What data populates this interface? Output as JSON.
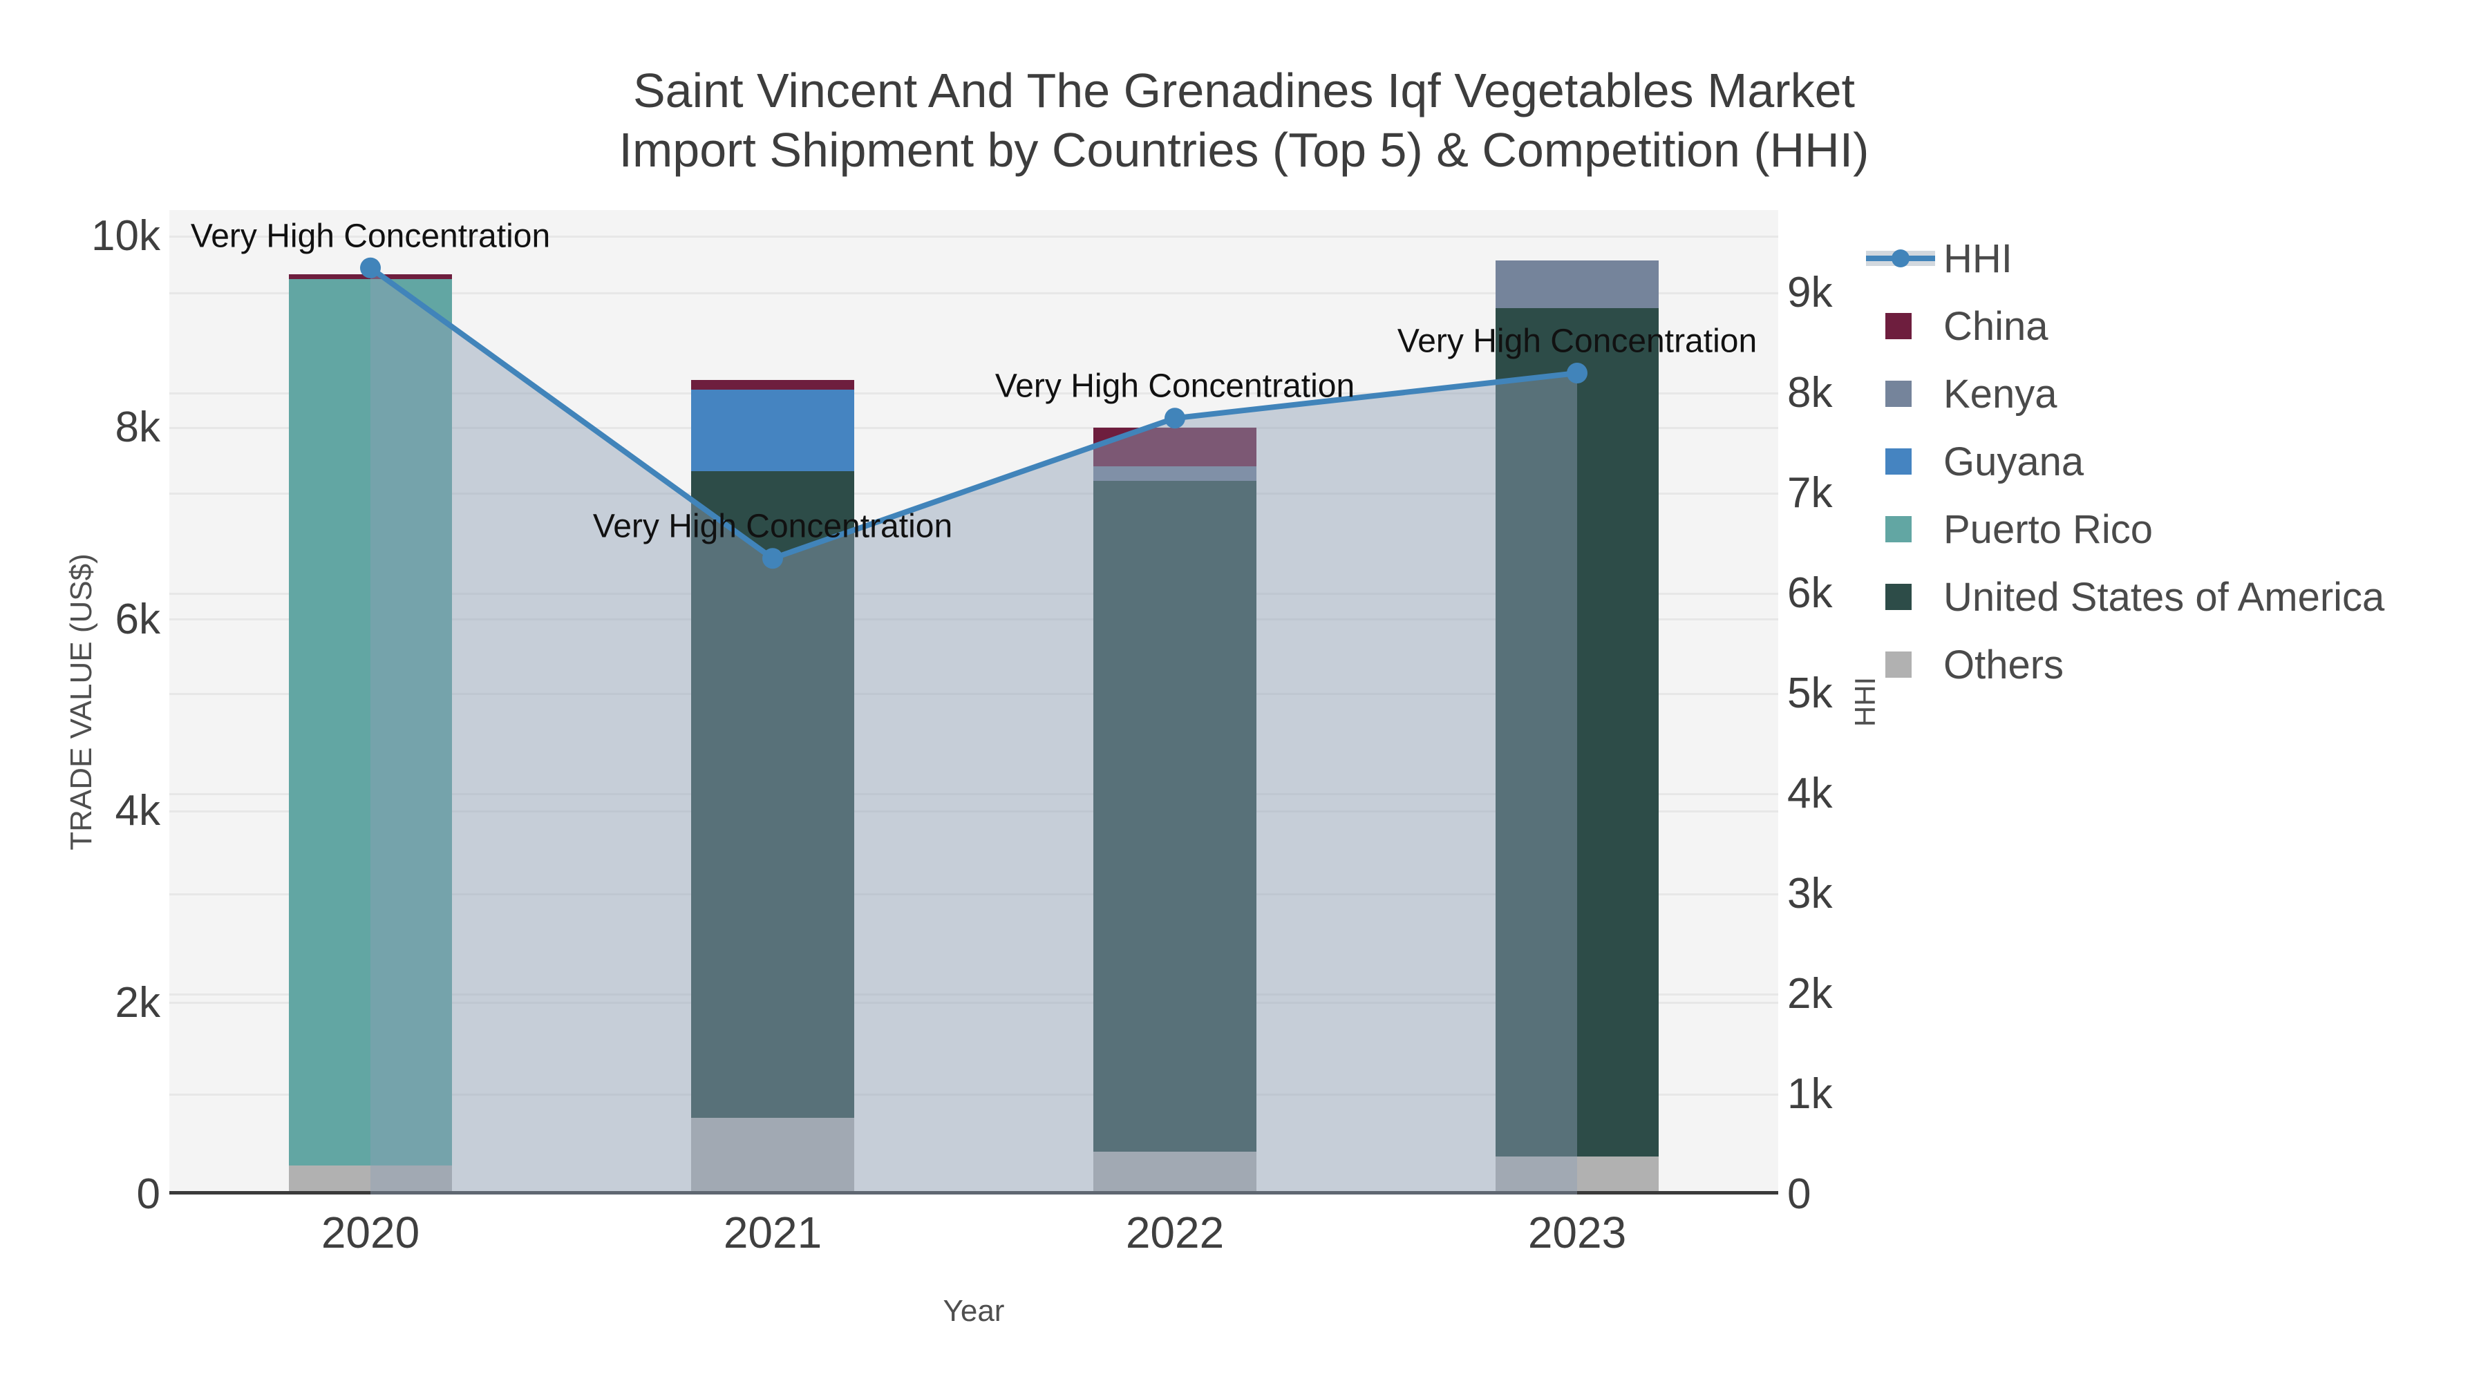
{
  "title": {
    "line1": "Saint Vincent And The Grenadines Iqf Vegetables Market",
    "line2": "Import Shipment by Countries (Top 5) & Competition (HHI)"
  },
  "axes": {
    "x": {
      "title": "Year"
    },
    "y_left": {
      "title": "TRADE VALUE (US$)",
      "ticks": [
        {
          "label": "0",
          "value": 0
        },
        {
          "label": "2k",
          "value": 2000
        },
        {
          "label": "4k",
          "value": 4000
        },
        {
          "label": "6k",
          "value": 6000
        },
        {
          "label": "8k",
          "value": 8000
        },
        {
          "label": "10k",
          "value": 10000
        }
      ]
    },
    "y_right": {
      "title": "HHI",
      "ticks": [
        {
          "label": "0",
          "value": 0
        },
        {
          "label": "1k",
          "value": 1000
        },
        {
          "label": "2k",
          "value": 2000
        },
        {
          "label": "3k",
          "value": 3000
        },
        {
          "label": "4k",
          "value": 4000
        },
        {
          "label": "5k",
          "value": 5000
        },
        {
          "label": "6k",
          "value": 6000
        },
        {
          "label": "7k",
          "value": 7000
        },
        {
          "label": "8k",
          "value": 8000
        },
        {
          "label": "9k",
          "value": 9000
        }
      ]
    }
  },
  "legend": {
    "items": [
      {
        "label": "HHI",
        "kind": "line",
        "color": "#4184ba",
        "band_color": "#d2d8de"
      },
      {
        "label": "China",
        "kind": "square",
        "color": "#6e1e3e"
      },
      {
        "label": "Kenya",
        "kind": "square",
        "color": "#75849b"
      },
      {
        "label": "Guyana",
        "kind": "square",
        "color": "#4584c1"
      },
      {
        "label": "Puerto Rico",
        "kind": "square",
        "color": "#62a6a3"
      },
      {
        "label": "United States of America",
        "kind": "square",
        "color": "#2d4c48"
      },
      {
        "label": "Others",
        "kind": "square",
        "color": "#b1b1b1"
      }
    ]
  },
  "colors": {
    "plot_background": "#f4f4f4",
    "gridline": "#e7e7e7",
    "zero_line": "#3a3a3a",
    "hhi_line": "#4184ba",
    "hhi_fill": "rgba(143,160,181,0.45)"
  },
  "chart_data": {
    "type": "combo-stacked-bar-line",
    "title": "Saint Vincent And The Grenadines Iqf Vegetables Market Import Shipment by Countries (Top 5) & Competition (HHI)",
    "categories": [
      "2020",
      "2021",
      "2022",
      "2023"
    ],
    "xlabel": "Year",
    "ylabel_left": "TRADE VALUE (US$)",
    "ylabel_right": "HHI",
    "ylim_left": [
      0,
      10275
    ],
    "ylim_right": [
      0,
      9830
    ],
    "grid": true,
    "legend_position": "right",
    "stack_order": [
      "Others",
      "United States of America",
      "Puerto Rico",
      "Guyana",
      "Kenya",
      "China"
    ],
    "series": [
      {
        "name": "China",
        "color": "#6e1e3e",
        "values": [
          50,
          100,
          400,
          0
        ]
      },
      {
        "name": "Kenya",
        "color": "#75849b",
        "values": [
          0,
          0,
          150,
          500
        ]
      },
      {
        "name": "Guyana",
        "color": "#4584c1",
        "values": [
          0,
          850,
          0,
          0
        ]
      },
      {
        "name": "Puerto Rico",
        "color": "#62a6a3",
        "values": [
          9250,
          0,
          0,
          0
        ]
      },
      {
        "name": "United States of America",
        "color": "#2d4c48",
        "values": [
          0,
          6750,
          7000,
          8850
        ]
      },
      {
        "name": "Others",
        "color": "#b1b1b1",
        "values": [
          300,
          800,
          450,
          400
        ]
      }
    ],
    "line_series": {
      "name": "HHI",
      "axis": "right",
      "color": "#4184ba",
      "fill_color": "rgba(143,160,181,0.45)",
      "values": [
        9250,
        6350,
        7750,
        8200
      ]
    },
    "annotations": [
      {
        "category": "2020",
        "text": "Very High Concentration"
      },
      {
        "category": "2021",
        "text": "Very High Concentration"
      },
      {
        "category": "2022",
        "text": "Very High Concentration"
      },
      {
        "category": "2023",
        "text": "Very High Concentration"
      }
    ]
  }
}
